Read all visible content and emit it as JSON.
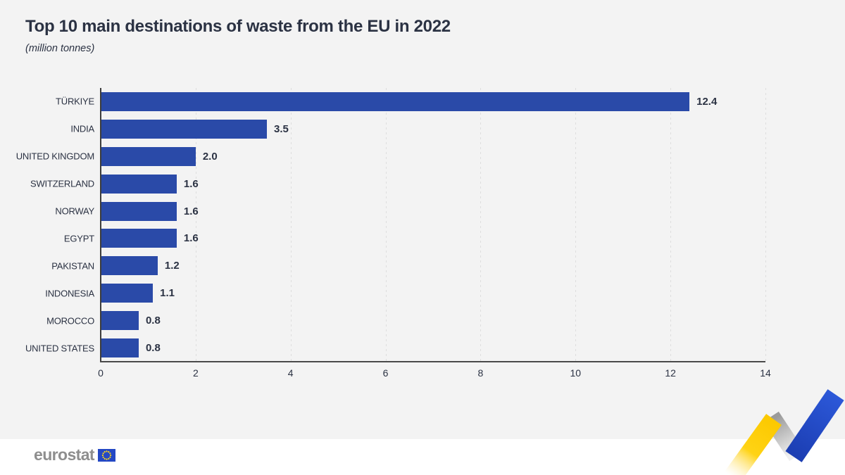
{
  "page": {
    "background_color": "#f3f3f3",
    "footer_background_color": "#ffffff"
  },
  "chart_data": {
    "type": "bar",
    "orientation": "horizontal",
    "title": "Top 10 main destinations of waste from the EU in 2022",
    "subtitle": "(million tonnes)",
    "unit": "million tonnes",
    "categories": [
      "TÜRKIYE",
      "INDIA",
      "UNITED KINGDOM",
      "SWITZERLAND",
      "NORWAY",
      "EGYPT",
      "PAKISTAN",
      "INDONESIA",
      "MOROCCO",
      "UNITED STATES"
    ],
    "values": [
      12.4,
      3.5,
      2.0,
      1.6,
      1.6,
      1.6,
      1.2,
      1.1,
      0.8,
      0.8
    ],
    "value_labels": [
      "12.4",
      "3.5",
      "2.0",
      "1.6",
      "1.6",
      "1.6",
      "1.2",
      "1.1",
      "0.8",
      "0.8"
    ],
    "xlim": [
      0,
      14
    ],
    "x_ticks": [
      "0",
      "2",
      "4",
      "6",
      "8",
      "10",
      "12",
      "14"
    ],
    "grid": "vertical dashed gridlines at each x tick",
    "legend": "none",
    "bar_color": "#2a4aa8",
    "text_color": "#2b3243",
    "axis_color": "#4a4a4a",
    "gridline_color": "#dedede"
  },
  "footer": {
    "logo_text": "eurostat"
  },
  "decoration": {
    "swoosh_colors": {
      "yellow": "#ffd314",
      "gray": "#c9c9c9",
      "blue": "#2450c8"
    },
    "eu_flag_colors": {
      "field": "#2448c4",
      "stars": "#ffd617"
    }
  }
}
